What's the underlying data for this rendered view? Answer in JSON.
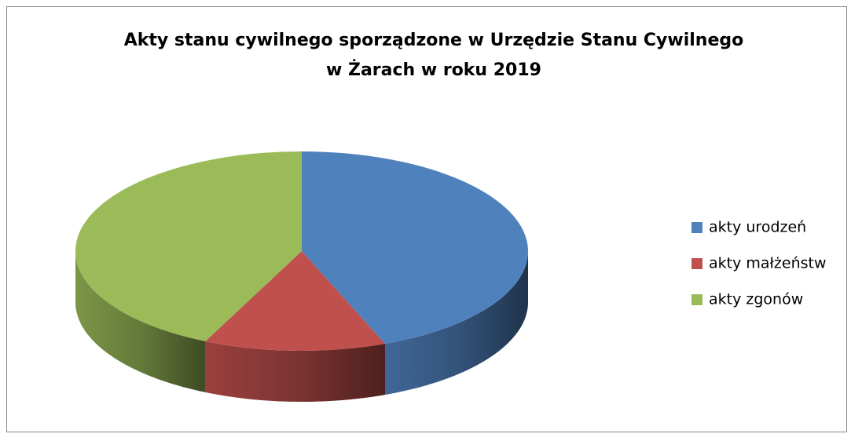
{
  "chart_data": {
    "type": "pie3d",
    "title": [
      "Akty stanu cywilnego sporządzone  w Urzędzie Stanu Cywilnego",
      "w Żarach w roku 2019"
    ],
    "categories": [
      "akty urodzeń",
      "akty małżeństw",
      "akty zgonów"
    ],
    "values": [
      44,
      13,
      43
    ],
    "colors": [
      "#4f81bd",
      "#c0504d",
      "#9bbb59"
    ],
    "legend": "right"
  }
}
